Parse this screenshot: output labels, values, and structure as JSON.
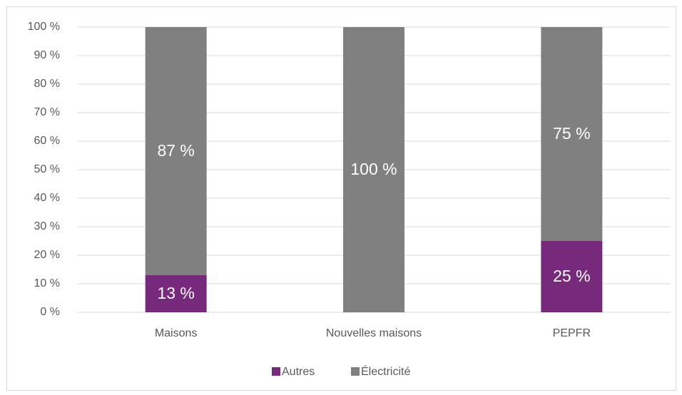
{
  "chart_data": {
    "type": "stacked_bar",
    "categories": [
      "Maisons",
      "Nouvelles maisons",
      "PEPFR"
    ],
    "series": [
      {
        "name": "Autres",
        "color": "#772a7b",
        "values": [
          13,
          0,
          25
        ],
        "value_labels": [
          "13 %",
          null,
          "25 %"
        ]
      },
      {
        "name": "Électricité",
        "color": "#808080",
        "values": [
          87,
          100,
          75
        ],
        "value_labels": [
          "87 %",
          "100 %",
          "75 %"
        ]
      }
    ],
    "ylim": [
      0,
      100
    ],
    "yticks": [
      {
        "value": 0,
        "label": "0 %"
      },
      {
        "value": 10,
        "label": "10 %"
      },
      {
        "value": 20,
        "label": "20 %"
      },
      {
        "value": 30,
        "label": "30 %"
      },
      {
        "value": 40,
        "label": "40 %"
      },
      {
        "value": 50,
        "label": "50 %"
      },
      {
        "value": 60,
        "label": "60 %"
      },
      {
        "value": 70,
        "label": "70 %"
      },
      {
        "value": 80,
        "label": "80 %"
      },
      {
        "value": 90,
        "label": "90 %"
      },
      {
        "value": 100,
        "label": "100 %"
      }
    ],
    "grid": true,
    "legend": "bottom"
  }
}
